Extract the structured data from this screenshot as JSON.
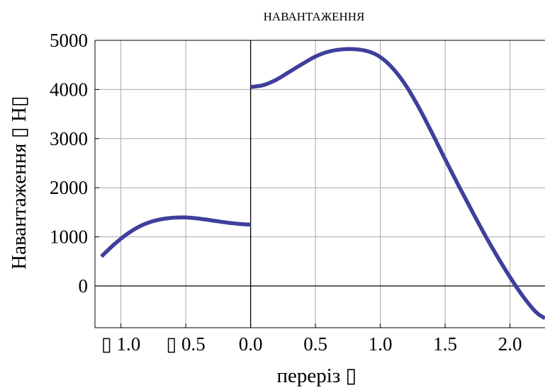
{
  "chart_data": {
    "type": "line",
    "title": "НАВАНТАЖЕННЯ",
    "xlabel": "переріз ▯",
    "ylabel": "Навантаження ▯ Н▯",
    "xlim": [
      -1.2,
      2.27
    ],
    "ylim": [
      -850,
      5000
    ],
    "grid": true,
    "x_ticks": [
      {
        "value": -1.0,
        "label": "▯ 1.0"
      },
      {
        "value": -0.5,
        "label": "▯ 0.5"
      },
      {
        "value": 0.0,
        "label": "0.0"
      },
      {
        "value": 0.5,
        "label": "0.5"
      },
      {
        "value": 1.0,
        "label": "1.0"
      },
      {
        "value": 1.5,
        "label": "1.5"
      },
      {
        "value": 2.0,
        "label": "2.0"
      }
    ],
    "y_ticks": [
      {
        "value": 0,
        "label": "0"
      },
      {
        "value": 1000,
        "label": "1000"
      },
      {
        "value": 2000,
        "label": "2000"
      },
      {
        "value": 3000,
        "label": "3000"
      },
      {
        "value": 4000,
        "label": "4000"
      },
      {
        "value": 5000,
        "label": "5000"
      }
    ],
    "series": [
      {
        "color": "#3f3f9c",
        "segments": [
          {
            "x": [
              -1.15,
              -1.05,
              -0.95,
              -0.85,
              -0.75,
              -0.65,
              -0.55,
              -0.45,
              -0.35,
              -0.25,
              -0.15,
              -0.05,
              0.0
            ],
            "y": [
              600,
              850,
              1060,
              1220,
              1320,
              1375,
              1395,
              1385,
              1355,
              1315,
              1280,
              1255,
              1250
            ]
          },
          {
            "x": [
              0.0,
              0.1,
              0.2,
              0.3,
              0.4,
              0.5,
              0.6,
              0.7,
              0.8,
              0.9,
              1.0,
              1.1,
              1.2,
              1.3,
              1.4,
              1.5,
              1.6,
              1.7,
              1.8,
              1.9,
              2.0,
              2.1,
              2.2,
              2.27
            ],
            "y": [
              4050,
              4090,
              4200,
              4360,
              4520,
              4670,
              4770,
              4815,
              4820,
              4780,
              4660,
              4420,
              4070,
              3620,
              3110,
              2580,
              2060,
              1560,
              1070,
              610,
              180,
              -210,
              -530,
              -660
            ]
          }
        ]
      }
    ]
  }
}
